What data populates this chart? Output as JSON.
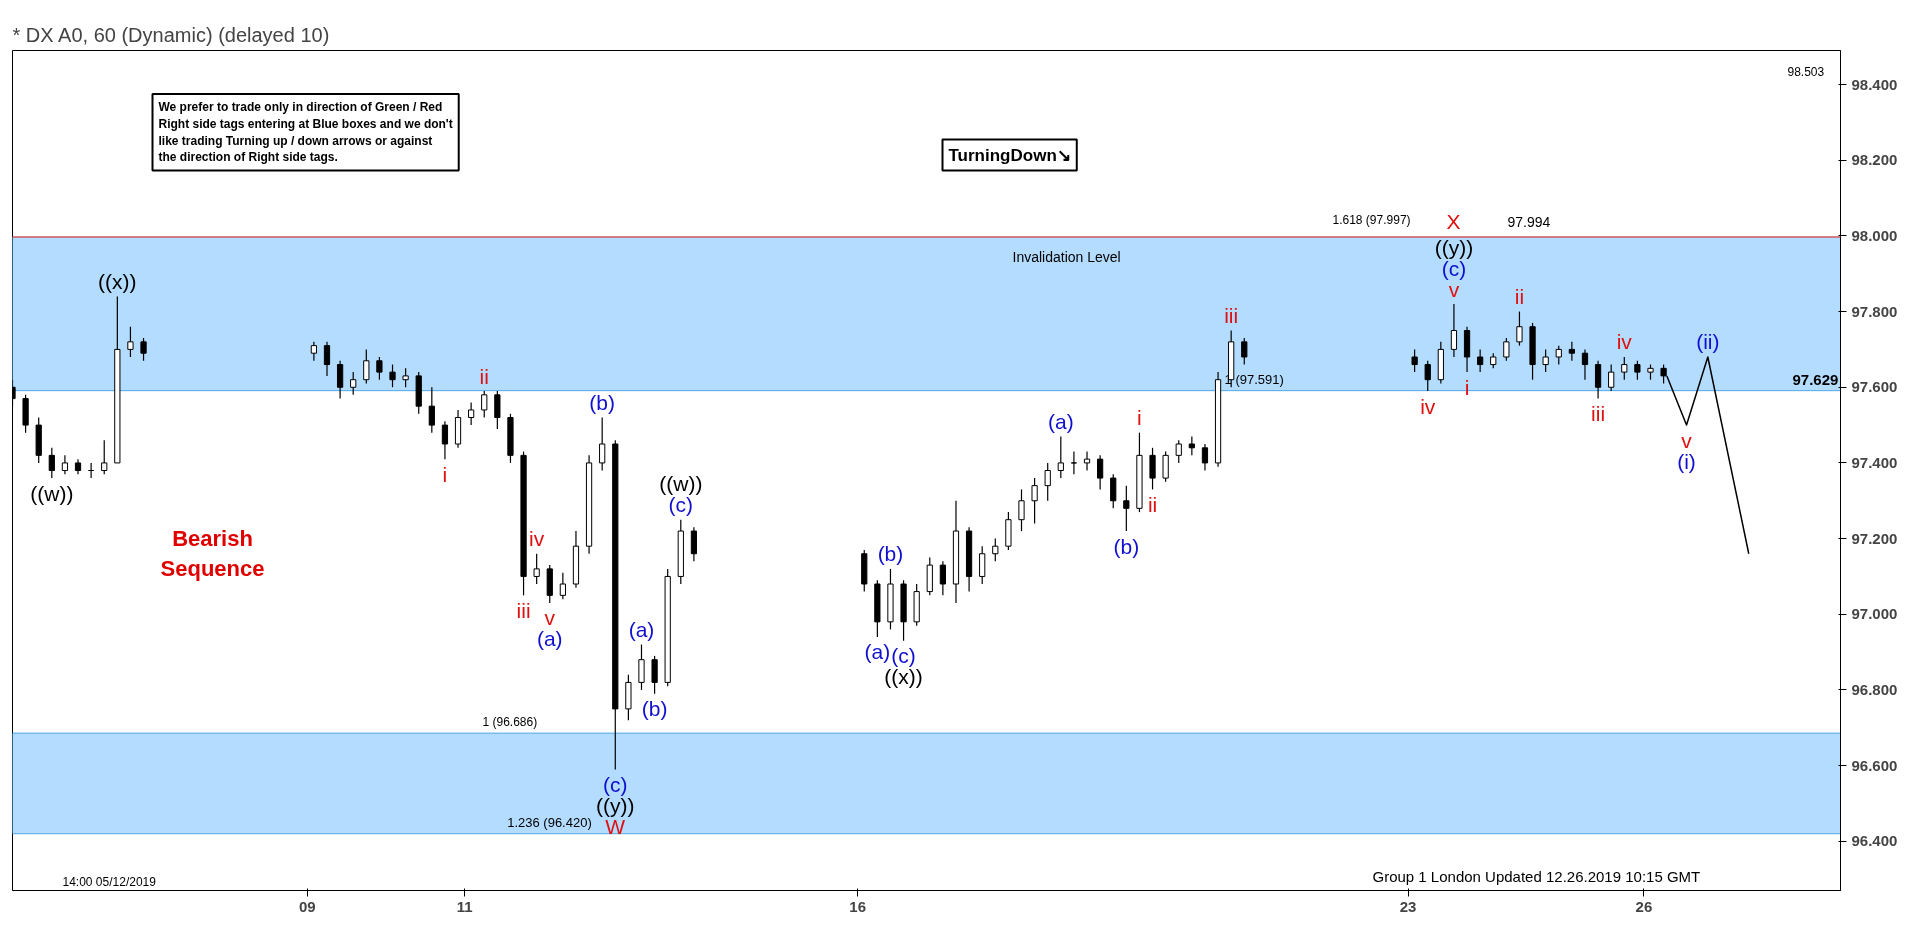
{
  "chart_data": {
    "type": "candlestick",
    "title": "* DX A0, 60 (Dynamic) (delayed 10)",
    "x": [
      "2019-12-05T06:00",
      "2019-12-05T10:00",
      "2019-12-05T14:00",
      "2019-12-05T18:00",
      "2019-12-05T22:00",
      "2019-12-06T02:00",
      "2019-12-06T06:00",
      "2019-12-06T10:00",
      "2019-12-06T14:00",
      "2019-12-06T18:00",
      "2019-12-06T22:00",
      "2019-12-09T02:00",
      "2019-12-09T06:00",
      "2019-12-09T10:00",
      "2019-12-09T14:00",
      "2019-12-09T18:00",
      "2019-12-09T22:00",
      "2019-12-10T02:00",
      "2019-12-10T06:00",
      "2019-12-10T10:00",
      "2019-12-10T14:00",
      "2019-12-10T18:00",
      "2019-12-10T22:00",
      "2019-12-11T02:00",
      "2019-12-11T06:00",
      "2019-12-11T10:00",
      "2019-12-11T14:00",
      "2019-12-11T18:00",
      "2019-12-11T22:00",
      "2019-12-12T02:00",
      "2019-12-12T06:00",
      "2019-12-12T10:00",
      "2019-12-12T14:00",
      "2019-12-12T18:00",
      "2019-12-12T22:00",
      "2019-12-13T02:00",
      "2019-12-13T06:00",
      "2019-12-13T10:00",
      "2019-12-13T14:00",
      "2019-12-13T18:00",
      "2019-12-13T22:00",
      "2019-12-16T02:00",
      "2019-12-16T06:00",
      "2019-12-16T10:00",
      "2019-12-16T14:00",
      "2019-12-16T18:00",
      "2019-12-16T22:00",
      "2019-12-17T02:00",
      "2019-12-17T06:00",
      "2019-12-17T10:00",
      "2019-12-17T14:00",
      "2019-12-17T18:00",
      "2019-12-17T22:00",
      "2019-12-18T02:00",
      "2019-12-18T06:00",
      "2019-12-18T10:00",
      "2019-12-18T14:00",
      "2019-12-18T18:00",
      "2019-12-18T22:00",
      "2019-12-19T02:00",
      "2019-12-19T06:00",
      "2019-12-19T10:00",
      "2019-12-19T14:00",
      "2019-12-19T18:00",
      "2019-12-19T22:00",
      "2019-12-20T02:00",
      "2019-12-20T06:00",
      "2019-12-20T10:00",
      "2019-12-20T14:00",
      "2019-12-20T18:00",
      "2019-12-20T22:00",
      "2019-12-23T02:00",
      "2019-12-23T06:00",
      "2019-12-23T10:00",
      "2019-12-23T14:00",
      "2019-12-23T18:00",
      "2019-12-23T22:00",
      "2019-12-24T02:00",
      "2019-12-24T06:00",
      "2019-12-24T10:00",
      "2019-12-24T14:00",
      "2019-12-24T18:00",
      "2019-12-24T22:00",
      "2019-12-25T02:00",
      "2019-12-25T06:00",
      "2019-12-25T10:00",
      "2019-12-25T14:00",
      "2019-12-25T18:00",
      "2019-12-25T22:00",
      "2019-12-26T02:00",
      "2019-12-26T06:00"
    ],
    "ohlc": [
      [
        97.6,
        97.62,
        97.55,
        97.57
      ],
      [
        97.57,
        97.58,
        97.48,
        97.5
      ],
      [
        97.5,
        97.52,
        97.4,
        97.42
      ],
      [
        97.42,
        97.44,
        97.36,
        97.38
      ],
      [
        97.38,
        97.42,
        97.37,
        97.4
      ],
      [
        97.4,
        97.41,
        97.37,
        97.38
      ],
      [
        97.38,
        97.4,
        97.36,
        97.38
      ],
      [
        97.38,
        97.46,
        97.37,
        97.4
      ],
      [
        97.4,
        97.84,
        97.4,
        97.7
      ],
      [
        97.7,
        97.76,
        97.68,
        97.72
      ],
      [
        97.72,
        97.73,
        97.67,
        97.69
      ],
      [
        97.69,
        97.72,
        97.67,
        97.71
      ],
      [
        97.71,
        97.72,
        97.63,
        97.66
      ],
      [
        97.66,
        97.67,
        97.57,
        97.6
      ],
      [
        97.6,
        97.64,
        97.58,
        97.62
      ],
      [
        97.62,
        97.7,
        97.61,
        97.67
      ],
      [
        97.67,
        97.68,
        97.62,
        97.64
      ],
      [
        97.64,
        97.66,
        97.6,
        97.62
      ],
      [
        97.62,
        97.65,
        97.6,
        97.63
      ],
      [
        97.63,
        97.64,
        97.53,
        97.55
      ],
      [
        97.55,
        97.6,
        97.48,
        97.5
      ],
      [
        97.5,
        97.51,
        97.41,
        97.45
      ],
      [
        97.45,
        97.54,
        97.44,
        97.52
      ],
      [
        97.52,
        97.56,
        97.5,
        97.54
      ],
      [
        97.54,
        97.59,
        97.52,
        97.58
      ],
      [
        97.58,
        97.59,
        97.49,
        97.52
      ],
      [
        97.52,
        97.53,
        97.4,
        97.42
      ],
      [
        97.42,
        97.43,
        97.05,
        97.1
      ],
      [
        97.1,
        97.16,
        97.08,
        97.12
      ],
      [
        97.12,
        97.13,
        97.03,
        97.05
      ],
      [
        97.05,
        97.11,
        97.04,
        97.08
      ],
      [
        97.08,
        97.22,
        97.07,
        97.18
      ],
      [
        97.18,
        97.42,
        97.16,
        97.4
      ],
      [
        97.4,
        97.52,
        97.38,
        97.45
      ],
      [
        97.45,
        97.46,
        96.59,
        96.75
      ],
      [
        96.75,
        96.84,
        96.72,
        96.82
      ],
      [
        96.82,
        96.92,
        96.8,
        96.88
      ],
      [
        96.88,
        96.89,
        96.79,
        96.82
      ],
      [
        96.82,
        97.12,
        96.81,
        97.1
      ],
      [
        97.1,
        97.25,
        97.08,
        97.22
      ],
      [
        97.22,
        97.23,
        97.14,
        97.16
      ],
      [
        97.16,
        97.17,
        97.06,
        97.08
      ],
      [
        97.08,
        97.09,
        96.94,
        96.98
      ],
      [
        96.98,
        97.12,
        96.96,
        97.08
      ],
      [
        97.08,
        97.09,
        96.93,
        96.98
      ],
      [
        96.98,
        97.08,
        96.97,
        97.06
      ],
      [
        97.06,
        97.15,
        97.05,
        97.13
      ],
      [
        97.13,
        97.14,
        97.05,
        97.08
      ],
      [
        97.08,
        97.3,
        97.03,
        97.22
      ],
      [
        97.22,
        97.23,
        97.06,
        97.1
      ],
      [
        97.1,
        97.18,
        97.08,
        97.16
      ],
      [
        97.16,
        97.2,
        97.14,
        97.18
      ],
      [
        97.18,
        97.27,
        97.17,
        97.25
      ],
      [
        97.25,
        97.33,
        97.22,
        97.3
      ],
      [
        97.3,
        97.36,
        97.24,
        97.34
      ],
      [
        97.34,
        97.4,
        97.3,
        97.38
      ],
      [
        97.38,
        97.47,
        97.36,
        97.4
      ],
      [
        97.4,
        97.43,
        97.37,
        97.4
      ],
      [
        97.4,
        97.43,
        97.38,
        97.41
      ],
      [
        97.41,
        97.42,
        97.33,
        97.36
      ],
      [
        97.36,
        97.37,
        97.28,
        97.3
      ],
      [
        97.3,
        97.34,
        97.22,
        97.28
      ],
      [
        97.28,
        97.48,
        97.27,
        97.42
      ],
      [
        97.42,
        97.44,
        97.33,
        97.36
      ],
      [
        97.36,
        97.43,
        97.35,
        97.42
      ],
      [
        97.42,
        97.46,
        97.4,
        97.45
      ],
      [
        97.45,
        97.47,
        97.42,
        97.44
      ],
      [
        97.44,
        97.45,
        97.38,
        97.4
      ],
      [
        97.4,
        97.64,
        97.39,
        97.62
      ],
      [
        97.62,
        97.75,
        97.6,
        97.72
      ],
      [
        97.72,
        97.73,
        97.66,
        97.68
      ],
      [
        97.68,
        97.7,
        97.64,
        97.66
      ],
      [
        97.66,
        97.67,
        97.59,
        97.62
      ],
      [
        97.62,
        97.72,
        97.61,
        97.7
      ],
      [
        97.7,
        97.82,
        97.68,
        97.75
      ],
      [
        97.75,
        97.76,
        97.64,
        97.68
      ],
      [
        97.68,
        97.7,
        97.64,
        97.66
      ],
      [
        97.66,
        97.69,
        97.65,
        97.68
      ],
      [
        97.68,
        97.73,
        97.67,
        97.72
      ],
      [
        97.72,
        97.8,
        97.71,
        97.76
      ],
      [
        97.76,
        97.77,
        97.62,
        97.66
      ],
      [
        97.66,
        97.7,
        97.64,
        97.68
      ],
      [
        97.68,
        97.71,
        97.66,
        97.7
      ],
      [
        97.7,
        97.72,
        97.67,
        97.69
      ],
      [
        97.69,
        97.7,
        97.62,
        97.66
      ],
      [
        97.66,
        97.67,
        97.57,
        97.6
      ],
      [
        97.6,
        97.66,
        97.59,
        97.64
      ],
      [
        97.64,
        97.68,
        97.62,
        97.66
      ],
      [
        97.66,
        97.67,
        97.62,
        97.64
      ],
      [
        97.64,
        97.66,
        97.62,
        97.65
      ],
      [
        97.65,
        97.66,
        97.61,
        97.63
      ]
    ],
    "color": "#000000",
    "series": [
      {
        "type": "line",
        "color": "#000000",
        "x": [
          "2019-12-26T07:00",
          "2019-12-26T13:00",
          "2019-12-26T19:30",
          "2019-12-27T08:00"
        ],
        "values": [
          97.63,
          97.5,
          97.68,
          97.16
        ]
      }
    ],
    "xlim": [
      "2019-12-05T06:00",
      "2019-12-28T12:00"
    ],
    "ylim": [
      96.27,
      98.49
    ],
    "xticks": [
      {
        "value": "2019-12-09",
        "label": "09"
      },
      {
        "value": "2019-12-11",
        "label": "11"
      },
      {
        "value": "2019-12-16",
        "label": "16"
      },
      {
        "value": "2019-12-23",
        "label": "23"
      },
      {
        "value": "2019-12-26",
        "label": "26"
      }
    ],
    "yticks": [
      {
        "value": 96.4,
        "label": "96.400"
      },
      {
        "value": 96.6,
        "label": "96.600"
      },
      {
        "value": 96.8,
        "label": "96.800"
      },
      {
        "value": 97.0,
        "label": "97.000"
      },
      {
        "value": 97.2,
        "label": "97.200"
      },
      {
        "value": 97.4,
        "label": "97.400"
      },
      {
        "value": 97.6,
        "label": "97.600"
      },
      {
        "value": 97.8,
        "label": "97.800"
      },
      {
        "value": 98.0,
        "label": "98.000"
      },
      {
        "value": 98.2,
        "label": "98.200"
      },
      {
        "value": 98.4,
        "label": "98.400"
      }
    ],
    "grid": false,
    "ref_lines": [
      {
        "axis": "y",
        "value": 97.997,
        "label": null,
        "color": "#e06060"
      }
    ],
    "bands": [
      {
        "axis": "y",
        "from": 96.42,
        "to": 96.686,
        "label": null,
        "color": "#b3dcff"
      },
      {
        "axis": "y",
        "from": 97.591,
        "to": 97.997,
        "label": null,
        "color": "#b3dcff"
      }
    ],
    "annotations": [
      "We prefer to trade only in direction of Green / Red\nRight side tags entering at Blue boxes and we don't\nlike trading Turning up / down arrows or against\nthe direction of Right side tags.",
      "TurningDown↘",
      "Bearish\nSequence",
      "14:00 05/12/2019",
      "Group 1 London Updated 12.26.2019 10:15 GMT",
      "98.503",
      "1.618 (97.997)",
      "97.994",
      "Invalidation Level",
      "1 (96.686)",
      "97.629",
      "X",
      {
        "text": "1 (97.591)",
        "x": "2019-12-20T16:00",
        "y": 97.6
      },
      {
        "text": "1.236 (96.420)",
        "x": "2019-12-11T13:00",
        "y": 96.43
      },
      {
        "text": "((w))",
        "x": "2019-12-05T18:00",
        "y": 97.36
      },
      {
        "text": "((x))",
        "x": "2019-12-06T14:00",
        "y": 97.84
      },
      {
        "text": "i",
        "x": "2019-12-10T18:00",
        "y": 97.41
      },
      {
        "text": "ii",
        "x": "2019-12-11T06:00",
        "y": 97.59
      },
      {
        "text": "iii",
        "x": "2019-12-11T18:00",
        "y": 97.05
      },
      {
        "text": "iv",
        "x": "2019-12-11T22:00",
        "y": 97.16
      },
      {
        "text": "v",
        "x": "2019-12-12T02:00",
        "y": 97.03
      },
      {
        "text": "(a)",
        "x": "2019-12-12T02:00",
        "y": 97.03
      },
      {
        "text": "(b)",
        "x": "2019-12-12T18:00",
        "y": 97.52
      },
      {
        "text": "(c)",
        "x": "2019-12-12T22:00",
        "y": 96.59
      },
      {
        "text": "((y))",
        "x": "2019-12-12T22:00",
        "y": 96.59
      },
      {
        "text": "W",
        "x": "2019-12-12T22:00",
        "y": 96.59
      },
      {
        "text": "(a)",
        "x": "2019-12-13T06:00",
        "y": 96.92
      },
      {
        "text": "(b)",
        "x": "2019-12-13T10:00",
        "y": 96.79
      },
      {
        "text": "(c)",
        "x": "2019-12-13T18:00",
        "y": 97.25
      },
      {
        "text": "((w))",
        "x": "2019-12-13T18:00",
        "y": 97.25
      },
      {
        "text": "(a)",
        "x": "2019-12-16T06:00",
        "y": 96.94
      },
      {
        "text": "(b)",
        "x": "2019-12-16T10:00",
        "y": 97.12
      },
      {
        "text": "(c)",
        "x": "2019-12-16T14:00",
        "y": 96.93
      },
      {
        "text": "((x))",
        "x": "2019-12-16T14:00",
        "y": 96.93
      },
      {
        "text": "(a)",
        "x": "2019-12-18T14:00",
        "y": 97.47
      },
      {
        "text": "(b)",
        "x": "2019-12-19T10:00",
        "y": 97.22
      },
      {
        "text": "i",
        "x": "2019-12-19T14:00",
        "y": 97.48
      },
      {
        "text": "ii",
        "x": "2019-12-19T18:00",
        "y": 97.33
      },
      {
        "text": "iii",
        "x": "2019-12-20T18:00",
        "y": 97.75
      },
      {
        "text": "iv",
        "x": "2019-12-23T06:00",
        "y": 97.59
      },
      {
        "text": "v",
        "x": "2019-12-23T14:00",
        "y": 97.82
      },
      {
        "text": "(c)",
        "x": "2019-12-23T14:00",
        "y": 97.82
      },
      {
        "text": "((y))",
        "x": "2019-12-23T14:00",
        "y": 97.82
      },
      {
        "text": "i",
        "x": "2019-12-23T18:00",
        "y": 97.64
      },
      {
        "text": "ii",
        "x": "2019-12-24T10:00",
        "y": 97.8
      },
      {
        "text": "iii",
        "x": "2019-12-25T10:00",
        "y": 97.57
      },
      {
        "text": "iv",
        "x": "2019-12-25T18:00",
        "y": 97.68
      },
      {
        "text": "v",
        "x": "2019-12-26T13:00",
        "y": 97.5
      },
      {
        "text": "(i)",
        "x": "2019-12-26T13:00",
        "y": 97.5
      },
      {
        "text": "(ii)",
        "x": "2019-12-26T19:30",
        "y": 97.68
      }
    ]
  }
}
